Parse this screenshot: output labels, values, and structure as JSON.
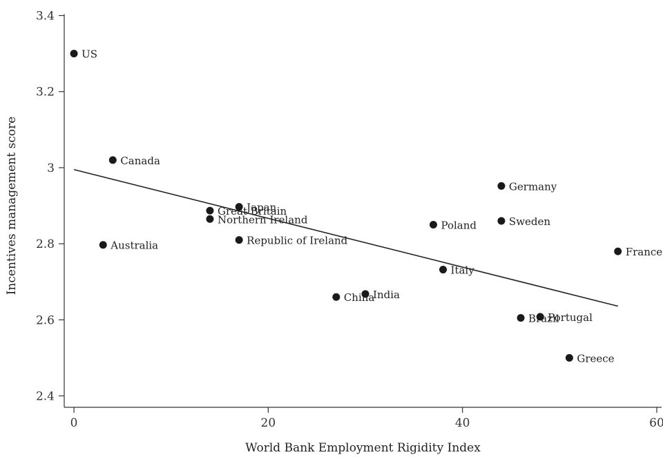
{
  "chart_data": {
    "type": "scatter",
    "title": "",
    "xlabel": "World Bank Employment Rigidity Index",
    "ylabel": "Incentives management score",
    "xlim": [
      -1,
      60.5
    ],
    "ylim": [
      2.37,
      3.43
    ],
    "xticks": [
      0,
      20,
      40,
      60
    ],
    "yticks": [
      2.4,
      2.6,
      2.8,
      3.0,
      3.2,
      3.4
    ],
    "ytick_labels": [
      "2.4",
      "2.6",
      "2.8",
      "3",
      "3.2",
      "3.4"
    ],
    "grid": false,
    "legend": "none",
    "points": [
      {
        "label": "US",
        "x": 0,
        "y": 3.3
      },
      {
        "label": "Canada",
        "x": 4,
        "y": 3.02
      },
      {
        "label": "Australia",
        "x": 3,
        "y": 2.797
      },
      {
        "label": "Great Britain",
        "x": 14,
        "y": 2.887
      },
      {
        "label": "Northern Ireland",
        "x": 14,
        "y": 2.865
      },
      {
        "label": "Japan",
        "x": 17,
        "y": 2.897
      },
      {
        "label": "Republic of Ireland",
        "x": 17,
        "y": 2.81
      },
      {
        "label": "China",
        "x": 27,
        "y": 2.66
      },
      {
        "label": "India",
        "x": 30,
        "y": 2.668
      },
      {
        "label": "Poland",
        "x": 37,
        "y": 2.85
      },
      {
        "label": "Italy",
        "x": 38,
        "y": 2.732
      },
      {
        "label": "Germany",
        "x": 44,
        "y": 2.952
      },
      {
        "label": "Sweden",
        "x": 44,
        "y": 2.86
      },
      {
        "label": "Brazil",
        "x": 46,
        "y": 2.605
      },
      {
        "label": "Portugal",
        "x": 48,
        "y": 2.608
      },
      {
        "label": "Greece",
        "x": 51,
        "y": 2.5
      },
      {
        "label": "France",
        "x": 56,
        "y": 2.78
      }
    ],
    "fit_line": {
      "x": [
        0,
        56
      ],
      "y": [
        2.995,
        2.636
      ]
    },
    "point_color": "#1a1a1a",
    "line_color": "#222222"
  }
}
